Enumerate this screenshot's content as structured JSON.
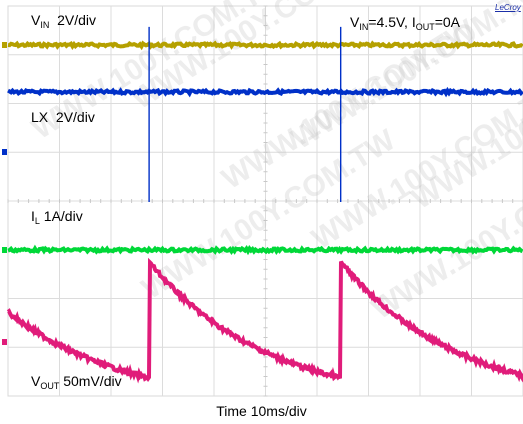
{
  "chart_data": {
    "type": "line",
    "title": "VIN=4.5V, IOUT=0A",
    "conditions": {
      "vin": "4.5V",
      "iout": "0A"
    },
    "xlabel": "Time  10ms/div",
    "x_units": "ms",
    "x_range": [
      0,
      100
    ],
    "grid": true,
    "brand": "LeCroy",
    "watermark": "WWW.100Y.COM.TW",
    "series": [
      {
        "name": "VIN",
        "scale": "2V/div",
        "color": "#b5a000",
        "unit": "V",
        "shape": "dc",
        "level": 4.5
      },
      {
        "name": "LX",
        "scale": "2V/div",
        "color": "#0030c8",
        "unit": "V",
        "shape": "pulse",
        "pulse_times": [
          27.4,
          64.6,
          101.8
        ],
        "baseline": 0,
        "spike_height_div": 2.3
      },
      {
        "name": "IL",
        "scale": "1A/div",
        "color": "#00d838",
        "unit": "A",
        "shape": "dc",
        "level": 0
      },
      {
        "name": "VOUT",
        "scale": "50mV/div",
        "color": "#e01c7a",
        "unit": "mV",
        "shape": "ripple",
        "reset_times": [
          27.4,
          64.6,
          101.8
        ],
        "ripple_pp_mV": 118
      }
    ],
    "labels": {
      "vin": {
        "main": "V",
        "sub": "IN",
        "tail": "  2V/div"
      },
      "lx": {
        "main": "LX  2V/div"
      },
      "il": {
        "main": "I",
        "sub": "L",
        "tail": " 1A/div"
      },
      "vout": {
        "main": "V",
        "sub": "OUT",
        "tail": " 50mV/div"
      },
      "cond": {
        "v": "V",
        "vsub": "IN",
        "vtail": "=4.5V, I",
        "isub": "OUT",
        "itail": "=0A"
      }
    }
  }
}
